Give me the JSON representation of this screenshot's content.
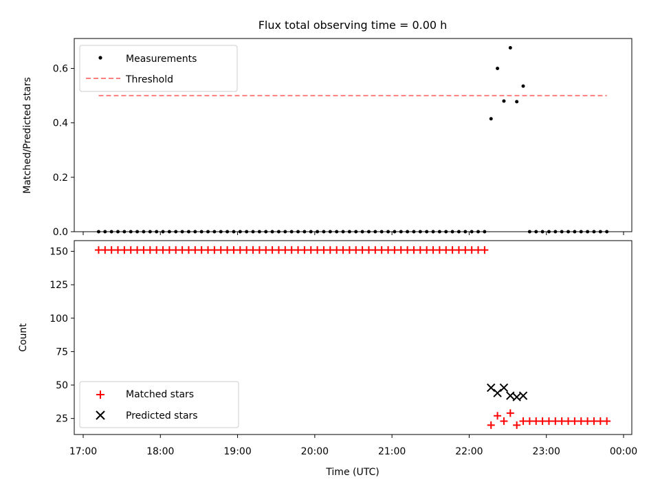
{
  "chart_data": [
    {
      "type": "scatter",
      "title": "Flux total observing time = 0.00 h",
      "xlabel": "",
      "ylabel": "Matched/Predicted stars",
      "ylim": [
        0,
        0.71
      ],
      "yticks": [
        "0.0",
        "0.2",
        "0.4",
        "0.6"
      ],
      "legend": "top-left",
      "series": [
        {
          "name": "Measurements",
          "color": "#000000",
          "marker": "dot",
          "points": [
            [
              "17:12",
              0
            ],
            [
              "17:17",
              0
            ],
            [
              "17:22",
              0
            ],
            [
              "17:27",
              0
            ],
            [
              "17:32",
              0
            ],
            [
              "17:37",
              0
            ],
            [
              "17:42",
              0
            ],
            [
              "17:47",
              0
            ],
            [
              "17:52",
              0
            ],
            [
              "17:57",
              0
            ],
            [
              "18:02",
              0
            ],
            [
              "18:07",
              0
            ],
            [
              "18:12",
              0
            ],
            [
              "18:17",
              0
            ],
            [
              "18:22",
              0
            ],
            [
              "18:27",
              0
            ],
            [
              "18:32",
              0
            ],
            [
              "18:37",
              0
            ],
            [
              "18:42",
              0
            ],
            [
              "18:47",
              0
            ],
            [
              "18:52",
              0
            ],
            [
              "18:57",
              0
            ],
            [
              "19:02",
              0
            ],
            [
              "19:07",
              0
            ],
            [
              "19:12",
              0
            ],
            [
              "19:17",
              0
            ],
            [
              "19:22",
              0
            ],
            [
              "19:27",
              0
            ],
            [
              "19:32",
              0
            ],
            [
              "19:37",
              0
            ],
            [
              "19:42",
              0
            ],
            [
              "19:47",
              0
            ],
            [
              "19:52",
              0
            ],
            [
              "19:57",
              0
            ],
            [
              "20:02",
              0
            ],
            [
              "20:07",
              0
            ],
            [
              "20:12",
              0
            ],
            [
              "20:17",
              0
            ],
            [
              "20:22",
              0
            ],
            [
              "20:27",
              0
            ],
            [
              "20:32",
              0
            ],
            [
              "20:37",
              0
            ],
            [
              "20:42",
              0
            ],
            [
              "20:47",
              0
            ],
            [
              "20:52",
              0
            ],
            [
              "20:57",
              0
            ],
            [
              "21:02",
              0
            ],
            [
              "21:07",
              0
            ],
            [
              "21:12",
              0
            ],
            [
              "21:17",
              0
            ],
            [
              "21:22",
              0
            ],
            [
              "21:27",
              0
            ],
            [
              "21:32",
              0
            ],
            [
              "21:37",
              0
            ],
            [
              "21:42",
              0
            ],
            [
              "21:47",
              0
            ],
            [
              "21:52",
              0
            ],
            [
              "21:57",
              0
            ],
            [
              "22:02",
              0
            ],
            [
              "22:07",
              0
            ],
            [
              "22:12",
              0
            ],
            [
              "22:17",
              0.415
            ],
            [
              "22:22",
              0.6
            ],
            [
              "22:27",
              0.48
            ],
            [
              "22:32",
              0.676
            ],
            [
              "22:37",
              0.478
            ],
            [
              "22:42",
              0.535
            ],
            [
              "22:47",
              0
            ],
            [
              "22:52",
              0
            ],
            [
              "22:57",
              0
            ],
            [
              "23:02",
              0
            ],
            [
              "23:07",
              0
            ],
            [
              "23:12",
              0
            ],
            [
              "23:17",
              0
            ],
            [
              "23:22",
              0
            ],
            [
              "23:27",
              0
            ],
            [
              "23:32",
              0
            ],
            [
              "23:37",
              0
            ],
            [
              "23:42",
              0
            ],
            [
              "23:47",
              0
            ]
          ]
        },
        {
          "name": "Threshold",
          "color": "#ff7f7f",
          "marker": "dashed-line",
          "points": [
            [
              "17:12",
              0.5
            ],
            [
              "23:47",
              0.5
            ]
          ]
        }
      ]
    },
    {
      "type": "scatter",
      "title": "",
      "xlabel": "Time (UTC)",
      "ylabel": "Count",
      "xlim": [
        "17:00",
        "00:00"
      ],
      "xticks": [
        "17:00",
        "18:00",
        "19:00",
        "20:00",
        "21:00",
        "22:00",
        "23:00",
        "00:00"
      ],
      "ylim": [
        13,
        158
      ],
      "yticks": [
        "25",
        "50",
        "75",
        "100",
        "125",
        "150"
      ],
      "legend": "bottom-left",
      "series": [
        {
          "name": "Matched stars",
          "color": "#ff0000",
          "marker": "plus",
          "points": [
            [
              "17:12",
              151
            ],
            [
              "17:17",
              151
            ],
            [
              "17:22",
              151
            ],
            [
              "17:27",
              151
            ],
            [
              "17:32",
              151
            ],
            [
              "17:37",
              151
            ],
            [
              "17:42",
              151
            ],
            [
              "17:47",
              151
            ],
            [
              "17:52",
              151
            ],
            [
              "17:57",
              151
            ],
            [
              "18:02",
              151
            ],
            [
              "18:07",
              151
            ],
            [
              "18:12",
              151
            ],
            [
              "18:17",
              151
            ],
            [
              "18:22",
              151
            ],
            [
              "18:27",
              151
            ],
            [
              "18:32",
              151
            ],
            [
              "18:37",
              151
            ],
            [
              "18:42",
              151
            ],
            [
              "18:47",
              151
            ],
            [
              "18:52",
              151
            ],
            [
              "18:57",
              151
            ],
            [
              "19:02",
              151
            ],
            [
              "19:07",
              151
            ],
            [
              "19:12",
              151
            ],
            [
              "19:17",
              151
            ],
            [
              "19:22",
              151
            ],
            [
              "19:27",
              151
            ],
            [
              "19:32",
              151
            ],
            [
              "19:37",
              151
            ],
            [
              "19:42",
              151
            ],
            [
              "19:47",
              151
            ],
            [
              "19:52",
              151
            ],
            [
              "19:57",
              151
            ],
            [
              "20:02",
              151
            ],
            [
              "20:07",
              151
            ],
            [
              "20:12",
              151
            ],
            [
              "20:17",
              151
            ],
            [
              "20:22",
              151
            ],
            [
              "20:27",
              151
            ],
            [
              "20:32",
              151
            ],
            [
              "20:37",
              151
            ],
            [
              "20:42",
              151
            ],
            [
              "20:47",
              151
            ],
            [
              "20:52",
              151
            ],
            [
              "20:57",
              151
            ],
            [
              "21:02",
              151
            ],
            [
              "21:07",
              151
            ],
            [
              "21:12",
              151
            ],
            [
              "21:17",
              151
            ],
            [
              "21:22",
              151
            ],
            [
              "21:27",
              151
            ],
            [
              "21:32",
              151
            ],
            [
              "21:37",
              151
            ],
            [
              "21:42",
              151
            ],
            [
              "21:47",
              151
            ],
            [
              "21:52",
              151
            ],
            [
              "21:57",
              151
            ],
            [
              "22:02",
              151
            ],
            [
              "22:07",
              151
            ],
            [
              "22:12",
              151
            ],
            [
              "22:17",
              20
            ],
            [
              "22:22",
              27
            ],
            [
              "22:27",
              23
            ],
            [
              "22:32",
              29
            ],
            [
              "22:37",
              20
            ],
            [
              "22:42",
              23
            ],
            [
              "22:47",
              23
            ],
            [
              "22:52",
              23
            ],
            [
              "22:57",
              23
            ],
            [
              "23:02",
              23
            ],
            [
              "23:07",
              23
            ],
            [
              "23:12",
              23
            ],
            [
              "23:17",
              23
            ],
            [
              "23:22",
              23
            ],
            [
              "23:27",
              23
            ],
            [
              "23:32",
              23
            ],
            [
              "23:37",
              23
            ],
            [
              "23:42",
              23
            ],
            [
              "23:47",
              23
            ]
          ]
        },
        {
          "name": "Predicted stars",
          "color": "#000000",
          "marker": "x",
          "points": [
            [
              "22:17",
              48
            ],
            [
              "22:22",
              44
            ],
            [
              "22:27",
              48
            ],
            [
              "22:32",
              42
            ],
            [
              "22:37",
              41
            ],
            [
              "22:42",
              42
            ]
          ]
        }
      ]
    }
  ]
}
